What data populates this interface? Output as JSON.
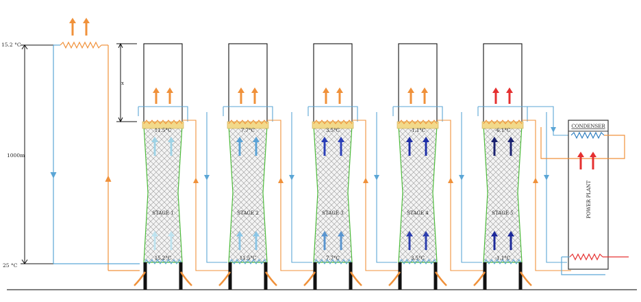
{
  "left_axis": {
    "top_temperature": "15.2 °C",
    "bottom_temperature": "25 °C",
    "height": "1000m",
    "x_marker": "x"
  },
  "stages": [
    {
      "name": "STAGE 1",
      "top_temp": "11.5°C",
      "bottom_temp": "15.2°C",
      "arrow_color_top": "#9fd3e6",
      "arrow_color_bottom": "#bfe3ef",
      "exhaust_color": "#f0913a"
    },
    {
      "name": "STAGE 2",
      "top_temp": "7.7°C",
      "bottom_temp": "11.5°C",
      "arrow_color_top": "#5aa2d6",
      "arrow_color_bottom": "#8cc6e6",
      "exhaust_color": "#f0913a"
    },
    {
      "name": "STAGE 3",
      "top_temp": "3.5°C",
      "bottom_temp": "7.7°C",
      "arrow_color_top": "#2b3fb8",
      "arrow_color_bottom": "#5a95cf",
      "exhaust_color": "#f0913a"
    },
    {
      "name": "STAGE 4",
      "top_temp": "-1.1°C",
      "bottom_temp": "3.5°C",
      "arrow_color_top": "#1e2fa8",
      "arrow_color_bottom": "#2d3fae",
      "exhaust_color": "#f0913a"
    },
    {
      "name": "STAGE 5",
      "top_temp": "-6.1°C",
      "bottom_temp": "-1.1°C",
      "arrow_color_top": "#1a2270",
      "arrow_color_bottom": "#1d2a9a",
      "exhaust_color": "#e53030"
    }
  ],
  "condenser_label": "CONDENSER",
  "power_plant_label": "POWER PLANT",
  "colors": {
    "cold_pipe": "#5ba6d6",
    "warm_pipe": "#f0913a",
    "mesh_outline": "#4cbb3a",
    "header": "#f2d98a",
    "heater": "#e53030",
    "condenser_coil": "#2f7fc1"
  }
}
